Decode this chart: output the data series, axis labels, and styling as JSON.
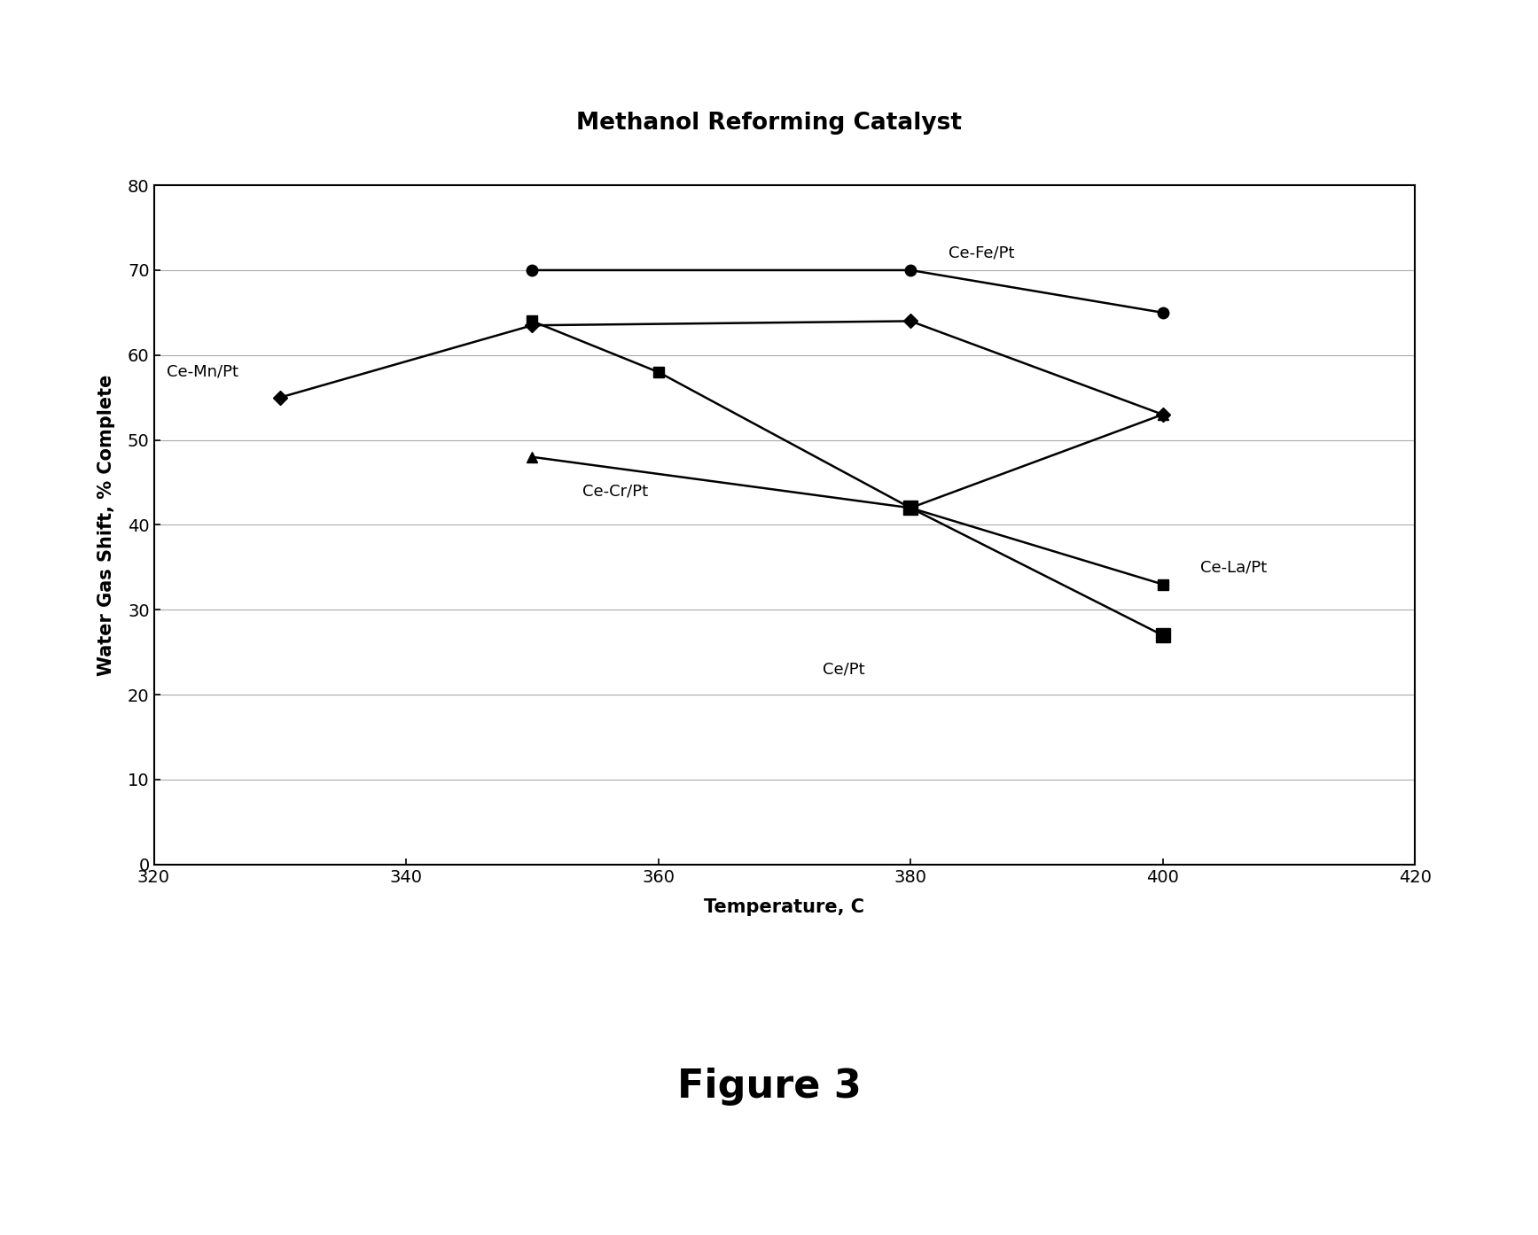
{
  "title": "Methanol Reforming Catalyst",
  "xlabel": "Temperature, C",
  "ylabel": "Water Gas Shift, % Complete",
  "figure_label": "Figure 3",
  "xlim": [
    320,
    420
  ],
  "ylim": [
    0,
    80
  ],
  "xticks": [
    320,
    340,
    360,
    380,
    400,
    420
  ],
  "yticks": [
    0,
    10,
    20,
    30,
    40,
    50,
    60,
    70,
    80
  ],
  "series": [
    {
      "label": "Ce-Fe/Pt",
      "x": [
        350,
        380,
        400
      ],
      "y": [
        70,
        70,
        65
      ],
      "marker": "o",
      "markersize": 9,
      "color": "#000000",
      "linewidth": 1.8,
      "ann_text": "Ce-Fe/Pt",
      "ann_x": 383,
      "ann_y": 72,
      "ann_ha": "left",
      "ann_va": "center"
    },
    {
      "label": "Ce-Mn/Pt",
      "x": [
        330,
        350,
        380,
        400
      ],
      "y": [
        55,
        63.5,
        64,
        53
      ],
      "marker": "D",
      "markersize": 8,
      "color": "#000000",
      "linewidth": 1.8,
      "ann_text": "Ce-Mn/Pt",
      "ann_x": 321,
      "ann_y": 58,
      "ann_ha": "left",
      "ann_va": "center"
    },
    {
      "label": "Ce-La/Pt",
      "x": [
        350,
        360,
        380,
        400
      ],
      "y": [
        64,
        58,
        42,
        33
      ],
      "marker": "s",
      "markersize": 8,
      "color": "#000000",
      "linewidth": 1.8,
      "ann_text": "Ce-La/Pt",
      "ann_x": 403,
      "ann_y": 35,
      "ann_ha": "left",
      "ann_va": "center"
    },
    {
      "label": "Ce/Pt",
      "x": [
        380,
        400
      ],
      "y": [
        42,
        27
      ],
      "marker": "s",
      "markersize": 12,
      "color": "#000000",
      "linewidth": 1.8,
      "ann_text": "Ce/Pt",
      "ann_x": 373,
      "ann_y": 23,
      "ann_ha": "left",
      "ann_va": "center"
    },
    {
      "label": "Ce-Cr/Pt",
      "x": [
        350,
        380,
        400
      ],
      "y": [
        48,
        42,
        53
      ],
      "marker": "^",
      "markersize": 9,
      "color": "#000000",
      "linewidth": 1.8,
      "ann_text": "Ce-Cr/Pt",
      "ann_x": 354,
      "ann_y": 44,
      "ann_ha": "left",
      "ann_va": "center"
    }
  ],
  "background_color": "#ffffff",
  "grid_color": "#aaaaaa",
  "title_fontsize": 19,
  "label_fontsize": 15,
  "tick_fontsize": 14,
  "ann_fontsize": 13,
  "figure_label_fontsize": 32
}
